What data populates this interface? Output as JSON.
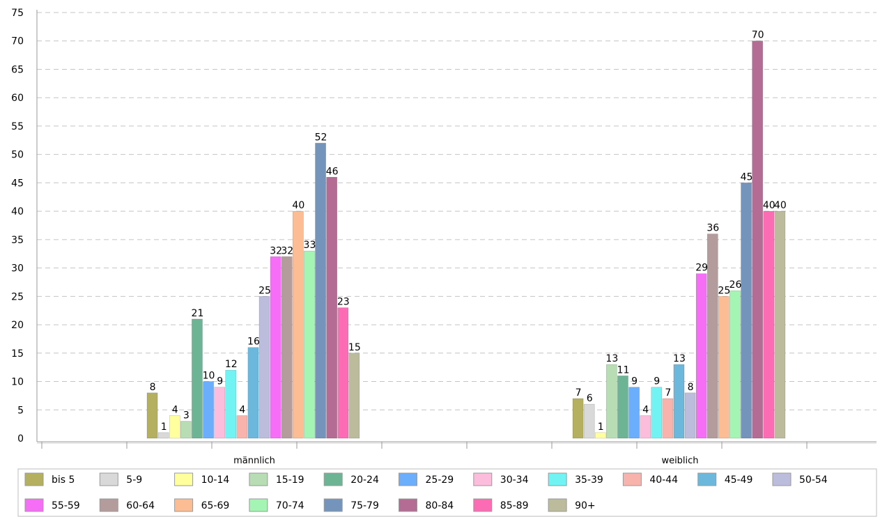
{
  "chart_data": {
    "type": "bar",
    "categories": [
      "männlich",
      "weiblich"
    ],
    "ylim": [
      0,
      75
    ],
    "yticks": [
      0,
      5,
      10,
      15,
      20,
      25,
      30,
      35,
      40,
      45,
      50,
      55,
      60,
      65,
      70,
      75
    ],
    "grid": true,
    "legend_position": "bottom",
    "series": [
      {
        "name": "bis 5",
        "color": "#b5b05f",
        "values": [
          8,
          7
        ]
      },
      {
        "name": "5-9",
        "color": "#d9d9d9",
        "values": [
          1,
          6
        ]
      },
      {
        "name": "10-14",
        "color": "#ffff9e",
        "values": [
          4,
          1
        ]
      },
      {
        "name": "15-19",
        "color": "#b8dcb4",
        "values": [
          3,
          13
        ]
      },
      {
        "name": "20-24",
        "color": "#6cb494",
        "values": [
          21,
          11
        ]
      },
      {
        "name": "25-29",
        "color": "#6aaefc",
        "values": [
          10,
          9
        ]
      },
      {
        "name": "30-34",
        "color": "#fcbcdc",
        "values": [
          9,
          4
        ]
      },
      {
        "name": "35-39",
        "color": "#72f3f3",
        "values": [
          12,
          9
        ]
      },
      {
        "name": "40-44",
        "color": "#f8b4ac",
        "values": [
          4,
          7
        ]
      },
      {
        "name": "45-49",
        "color": "#6cb8dc",
        "values": [
          16,
          13
        ]
      },
      {
        "name": "50-54",
        "color": "#bcbcdc",
        "values": [
          25,
          8
        ]
      },
      {
        "name": "55-59",
        "color": "#f66df6",
        "values": [
          32,
          29
        ]
      },
      {
        "name": "60-64",
        "color": "#b49c9c",
        "values": [
          32,
          36
        ]
      },
      {
        "name": "65-69",
        "color": "#fcbc94",
        "values": [
          40,
          25
        ]
      },
      {
        "name": "70-74",
        "color": "#a4f4b4",
        "values": [
          33,
          26
        ]
      },
      {
        "name": "75-79",
        "color": "#7494bc",
        "values": [
          52,
          45
        ]
      },
      {
        "name": "80-84",
        "color": "#b46c94",
        "values": [
          46,
          70
        ]
      },
      {
        "name": "85-89",
        "color": "#fc6cb4",
        "values": [
          23,
          40
        ]
      },
      {
        "name": "90+",
        "color": "#bcbc9c",
        "values": [
          15,
          40
        ]
      }
    ]
  }
}
